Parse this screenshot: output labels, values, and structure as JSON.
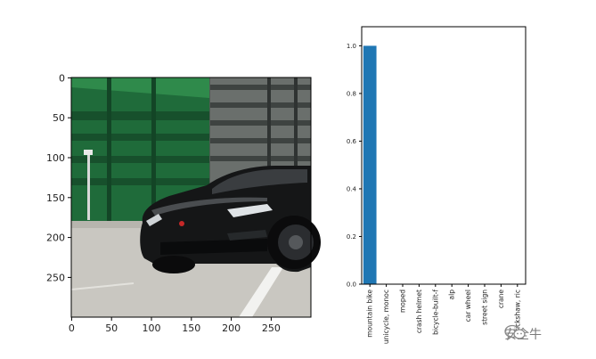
{
  "image_panel": {
    "x_ticks": [
      "0",
      "50",
      "100",
      "150",
      "200",
      "250"
    ],
    "y_ticks": [
      "0",
      "50",
      "100",
      "150",
      "200",
      "250"
    ]
  },
  "chart_data": {
    "type": "bar",
    "categories": [
      "mountain bike",
      "unicycle, monoc",
      "moped",
      "crash helmet",
      "bicycle-built-f",
      "alp",
      "car wheel",
      "street sign",
      "crane",
      "rickshaw, ric"
    ],
    "values": [
      1.0,
      0,
      0,
      0,
      0,
      0,
      0,
      0,
      0,
      0
    ],
    "ylim": [
      0,
      1.08
    ],
    "yticks": [
      0.0,
      0.2,
      0.4,
      0.6,
      0.8,
      1.0
    ],
    "ytick_labels": [
      "0.0",
      "0.2",
      "0.4",
      "0.6",
      "0.8",
      "1.0"
    ],
    "bar_color": "#1f77b4",
    "title": "",
    "xlabel": "",
    "ylabel": ""
  },
  "watermark": {
    "text": "安全牛",
    "color": "#7a7a7a"
  }
}
